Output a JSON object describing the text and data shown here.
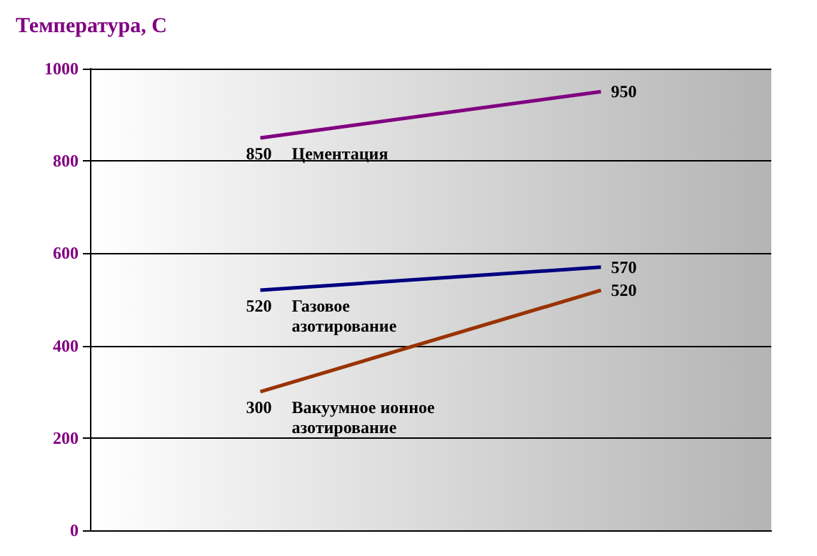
{
  "chart_data": {
    "type": "line",
    "title": "Температура, С",
    "categories": [
      null,
      null
    ],
    "series": [
      {
        "name": "Цементация",
        "color": "#800080",
        "values": [
          850,
          950
        ]
      },
      {
        "name": "Газовое азотирование",
        "color": "#000080",
        "values": [
          520,
          570
        ]
      },
      {
        "name": "Вакуумное ионное азотирование",
        "color": "#993300",
        "values": [
          300,
          520
        ]
      }
    ],
    "ylim": [
      0,
      1000
    ],
    "yticks": [
      0,
      200,
      400,
      600,
      800,
      1000
    ],
    "grid": "y",
    "tick_labels": "y",
    "data_labels": true,
    "marker": "none",
    "legend": false
  }
}
